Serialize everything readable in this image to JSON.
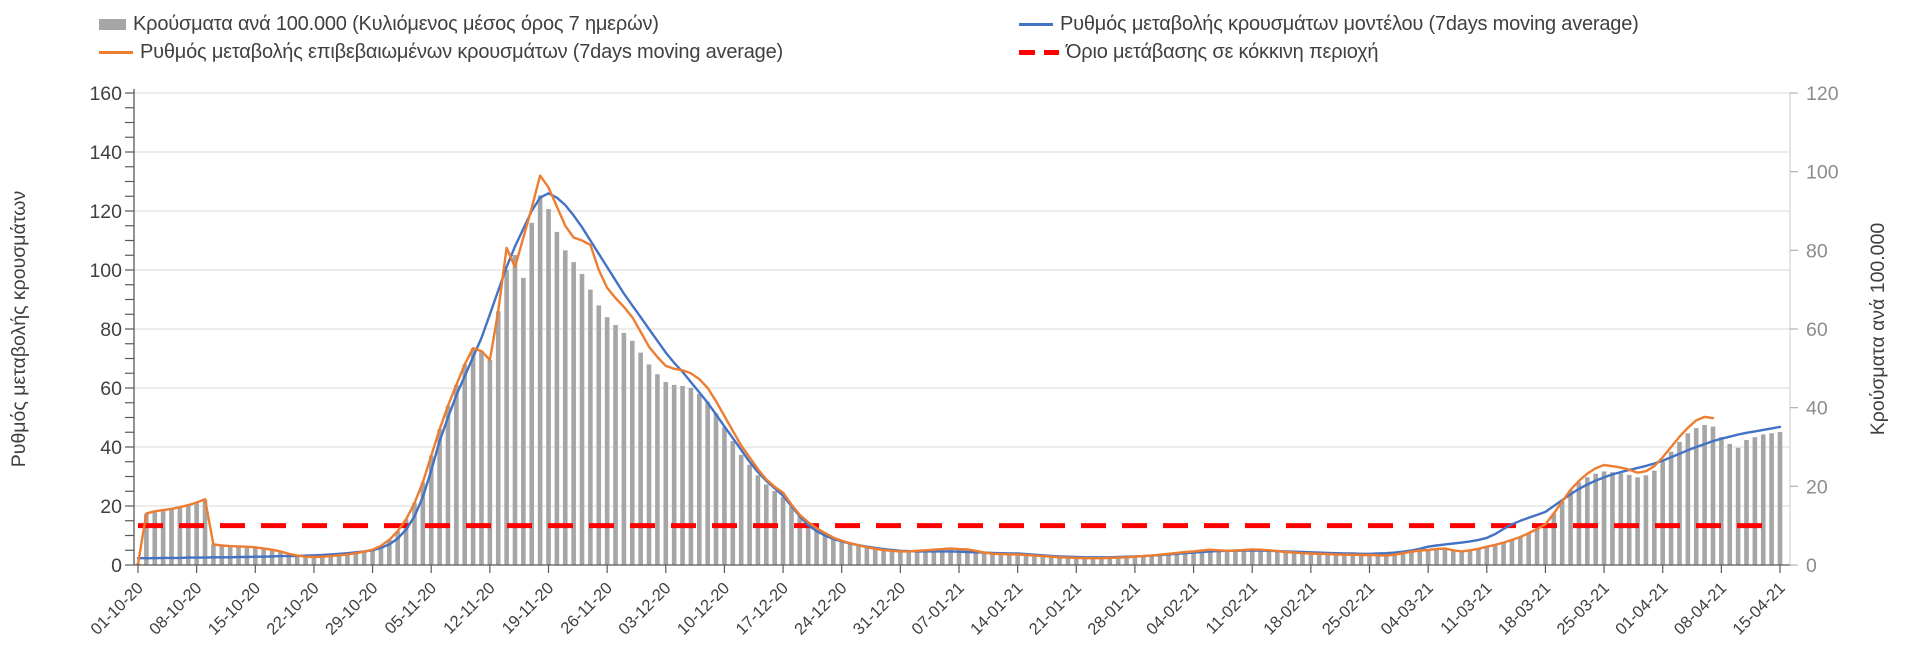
{
  "legend": {
    "items": [
      {
        "key": "bars",
        "label": "Κρούσματα ανά 100.000 (Κυλιόμενος μέσος όρος 7 ημερών)",
        "swatch": "bar"
      },
      {
        "key": "model",
        "label": "Ρυθμός μεταβολής κρουσμάτων μοντέλου (7days moving average)",
        "swatch": "line"
      },
      {
        "key": "confirmed",
        "label": "Ρυθμός μεταβολής επιβεβαιωμένων κρουσμάτων (7days moving average)",
        "swatch": "line"
      },
      {
        "key": "threshold",
        "label": "Όριο μετάβασης σε κόκκινη περιοχή",
        "swatch": "dash"
      }
    ]
  },
  "chart_data": {
    "type": "combo-bar-line",
    "x": {
      "n_points": 197,
      "days_per_tick": 7,
      "tick_labels": [
        "01-10-20",
        "08-10-20",
        "15-10-20",
        "22-10-20",
        "29-10-20",
        "05-11-20",
        "12-11-20",
        "19-11-20",
        "26-11-20",
        "03-12-20",
        "10-12-20",
        "17-12-20",
        "24-12-20",
        "31-12-20",
        "07-01-21",
        "14-01-21",
        "21-01-21",
        "28-01-21",
        "04-02-21",
        "11-02-21",
        "18-02-21",
        "25-02-21",
        "04-03-21",
        "11-03-21",
        "18-03-21",
        "25-03-21",
        "01-04-21",
        "08-04-21",
        "15-04-21"
      ]
    },
    "axes": {
      "left": {
        "title": "Ρυθμός μεταβολής κρουσμάτων",
        "min": 0,
        "max": 160,
        "step": 20,
        "minor_step": 5,
        "tick_labels": [
          "0",
          "20",
          "40",
          "60",
          "80",
          "100",
          "120",
          "140",
          "160"
        ],
        "label_color": "#404040"
      },
      "right": {
        "title": "Κρούσματα ανά 100.000",
        "min": 0,
        "max": 120,
        "step": 20,
        "tick_labels": [
          "0",
          "20",
          "40",
          "60",
          "80",
          "100",
          "120"
        ],
        "label_color": "#8c8c8c"
      }
    },
    "grid": {
      "horizontal": true,
      "color": "#d9d9d9"
    },
    "threshold": {
      "label": "Όριο μετάβασης σε κόκκινη περιοχή",
      "axis": "right",
      "value": 10,
      "color": "#ff0000",
      "style": "dashed"
    },
    "series": [
      {
        "key": "bars",
        "name": "Κρούσματα ανά 100.000 (Κυλιόμενος μέσος όρος 7 ημερών)",
        "type": "bar",
        "axis": "right",
        "color": "#a6a6a6",
        "values": [
          0.4,
          13.0,
          13.4,
          13.7,
          14.1,
          14.5,
          15.0,
          15.7,
          16.6,
          5.2,
          4.9,
          4.8,
          4.7,
          4.6,
          4.5,
          4.2,
          3.9,
          3.4,
          2.8,
          2.4,
          2.1,
          2.0,
          2.1,
          2.2,
          2.5,
          2.7,
          3.0,
          3.4,
          3.9,
          4.9,
          6.4,
          8.6,
          11.6,
          15.8,
          21.0,
          27.8,
          34.5,
          40.5,
          45.8,
          51.0,
          55.1,
          54.4,
          52.1,
          64.5,
          75.0,
          78.8,
          73.0,
          87.0,
          94.0,
          90.5,
          84.7,
          80.0,
          77.0,
          74.0,
          70.0,
          66.0,
          63.0,
          61.0,
          59.0,
          57.0,
          54.0,
          51.0,
          48.5,
          46.5,
          45.8,
          45.5,
          45.0,
          43.5,
          41.5,
          38.5,
          35.0,
          31.5,
          28.0,
          25.5,
          22.8,
          20.5,
          18.8,
          17.3,
          14.8,
          12.4,
          10.6,
          9.2,
          8.0,
          7.0,
          6.2,
          5.6,
          5.1,
          4.6,
          4.2,
          3.9,
          3.7,
          3.5,
          3.5,
          3.6,
          3.8,
          3.9,
          4.1,
          4.2,
          4.1,
          4.0,
          3.6,
          3.2,
          2.9,
          2.8,
          2.7,
          2.7,
          2.6,
          2.4,
          2.3,
          2.1,
          2.0,
          1.9,
          1.8,
          1.7,
          1.7,
          1.7,
          1.8,
          1.9,
          2.0,
          2.1,
          2.3,
          2.4,
          2.6,
          2.9,
          3.1,
          3.3,
          3.5,
          3.7,
          3.9,
          3.8,
          3.6,
          3.7,
          3.8,
          4.0,
          3.9,
          3.8,
          3.5,
          3.3,
          3.2,
          3.0,
          2.9,
          2.9,
          2.8,
          2.7,
          2.6,
          2.6,
          2.6,
          2.6,
          2.5,
          2.4,
          2.6,
          3.0,
          3.4,
          3.7,
          3.8,
          4.1,
          4.2,
          3.8,
          3.5,
          3.8,
          4.1,
          4.7,
          5.1,
          5.7,
          6.4,
          7.1,
          8.1,
          9.2,
          10.4,
          13.1,
          16.1,
          19.1,
          21.0,
          22.3,
          23.2,
          23.8,
          23.6,
          23.3,
          22.9,
          22.3,
          22.8,
          24.0,
          26.3,
          28.8,
          31.3,
          33.5,
          34.8,
          35.6,
          35.2,
          32.5,
          30.8,
          29.8,
          31.8,
          32.5,
          33.2,
          33.5,
          33.8
        ]
      },
      {
        "key": "model",
        "name": "Ρυθμός μεταβολής κρουσμάτων μοντέλου (7days moving average)",
        "type": "line",
        "axis": "left",
        "color": "#4472c4",
        "values": [
          2.3,
          2.3,
          2.3,
          2.4,
          2.4,
          2.4,
          2.5,
          2.5,
          2.5,
          2.6,
          2.6,
          2.6,
          2.7,
          2.7,
          2.8,
          2.8,
          2.9,
          3.0,
          3.0,
          3.1,
          3.2,
          3.3,
          3.4,
          3.6,
          3.8,
          4.0,
          4.3,
          4.6,
          5.0,
          5.8,
          7.0,
          9.0,
          12.0,
          16.5,
          23.0,
          32.0,
          42.0,
          50.0,
          57.5,
          64.0,
          70.5,
          77.0,
          85.0,
          93.0,
          101.0,
          108.0,
          114.0,
          120.0,
          124.5,
          126.0,
          124.5,
          122.0,
          118.5,
          114.5,
          110.0,
          105.5,
          101.0,
          96.5,
          92.0,
          88.0,
          84.0,
          80.0,
          76.0,
          72.0,
          68.5,
          65.5,
          62.0,
          58.5,
          55.0,
          51.0,
          47.0,
          43.0,
          39.0,
          35.0,
          31.5,
          28.5,
          26.0,
          23.5,
          20.0,
          16.5,
          13.5,
          11.5,
          10.0,
          8.8,
          8.0,
          7.3,
          6.7,
          6.2,
          5.8,
          5.4,
          5.1,
          4.8,
          4.7,
          4.6,
          4.6,
          4.6,
          4.6,
          4.6,
          4.5,
          4.4,
          4.3,
          4.2,
          4.1,
          4.0,
          3.9,
          3.9,
          3.7,
          3.5,
          3.3,
          3.1,
          2.9,
          2.8,
          2.7,
          2.6,
          2.6,
          2.6,
          2.6,
          2.7,
          2.8,
          2.9,
          3.0,
          3.2,
          3.4,
          3.6,
          3.8,
          4.0,
          4.2,
          4.4,
          4.6,
          4.7,
          4.8,
          4.8,
          4.9,
          4.9,
          4.9,
          4.8,
          4.7,
          4.6,
          4.5,
          4.4,
          4.3,
          4.2,
          4.1,
          4.0,
          3.9,
          3.9,
          3.8,
          3.8,
          3.9,
          4.0,
          4.2,
          4.5,
          4.9,
          5.5,
          6.2,
          6.6,
          7.0,
          7.3,
          7.6,
          8.0,
          8.5,
          9.2,
          10.5,
          12.2,
          13.8,
          15.0,
          16.0,
          17.0,
          18.0,
          20.0,
          22.0,
          24.0,
          25.8,
          27.3,
          28.6,
          29.7,
          30.7,
          31.5,
          32.2,
          32.9,
          33.6,
          34.4,
          35.4,
          36.5,
          37.7,
          38.9,
          40.0,
          41.0,
          42.0,
          42.8,
          43.5,
          44.2,
          44.8,
          45.3,
          45.8,
          46.3,
          46.8
        ]
      },
      {
        "key": "confirmed",
        "name": "Ρυθμός μεταβολής επιβεβαιωμένων κρουσμάτων (7days moving average)",
        "type": "line",
        "axis": "left",
        "color": "#ed7d31",
        "values": [
          0.3,
          17.5,
          18.2,
          18.6,
          19.0,
          19.6,
          20.3,
          21.2,
          22.3,
          7.0,
          6.6,
          6.4,
          6.3,
          6.2,
          6.0,
          5.6,
          5.2,
          4.6,
          3.8,
          3.2,
          2.8,
          2.7,
          2.8,
          3.0,
          3.3,
          3.6,
          4.0,
          4.5,
          5.2,
          6.5,
          8.5,
          11.5,
          15.5,
          21.0,
          28.0,
          37.0,
          46.0,
          54.0,
          61.0,
          68.0,
          73.5,
          72.5,
          69.5,
          86.0,
          107.5,
          101.0,
          111.0,
          121.0,
          132.0,
          128.0,
          121.5,
          115.0,
          111.0,
          110.0,
          108.5,
          100.0,
          94.0,
          90.5,
          87.5,
          84.0,
          79.0,
          74.0,
          70.5,
          67.5,
          66.5,
          66.0,
          65.0,
          63.0,
          60.0,
          55.5,
          50.5,
          45.5,
          40.5,
          36.5,
          32.5,
          29.0,
          26.5,
          24.5,
          20.5,
          17.0,
          14.5,
          12.5,
          10.8,
          9.3,
          8.2,
          7.4,
          6.7,
          6.0,
          5.5,
          5.1,
          4.8,
          4.6,
          4.6,
          4.8,
          5.0,
          5.2,
          5.4,
          5.6,
          5.4,
          5.3,
          4.8,
          4.2,
          3.8,
          3.7,
          3.6,
          3.6,
          3.4,
          3.2,
          3.0,
          2.8,
          2.6,
          2.5,
          2.4,
          2.3,
          2.3,
          2.3,
          2.4,
          2.5,
          2.6,
          2.8,
          3.0,
          3.2,
          3.5,
          3.8,
          4.1,
          4.4,
          4.6,
          4.9,
          5.2,
          5.0,
          4.8,
          4.9,
          5.1,
          5.3,
          5.2,
          5.0,
          4.7,
          4.4,
          4.2,
          4.0,
          3.9,
          3.8,
          3.7,
          3.6,
          3.5,
          3.5,
          3.4,
          3.4,
          3.3,
          3.2,
          3.5,
          4.0,
          4.5,
          4.9,
          5.1,
          5.4,
          5.6,
          5.0,
          4.6,
          5.0,
          5.5,
          6.2,
          6.8,
          7.6,
          8.5,
          9.5,
          10.8,
          12.2,
          13.8,
          17.5,
          21.5,
          25.5,
          28.5,
          31.0,
          32.8,
          33.9,
          33.5,
          33.0,
          32.3,
          31.3,
          31.8,
          33.5,
          36.5,
          40.0,
          43.5,
          46.5,
          49.0,
          50.2,
          49.8,
          null,
          null,
          null,
          null,
          null,
          null,
          null,
          null
        ]
      }
    ]
  }
}
